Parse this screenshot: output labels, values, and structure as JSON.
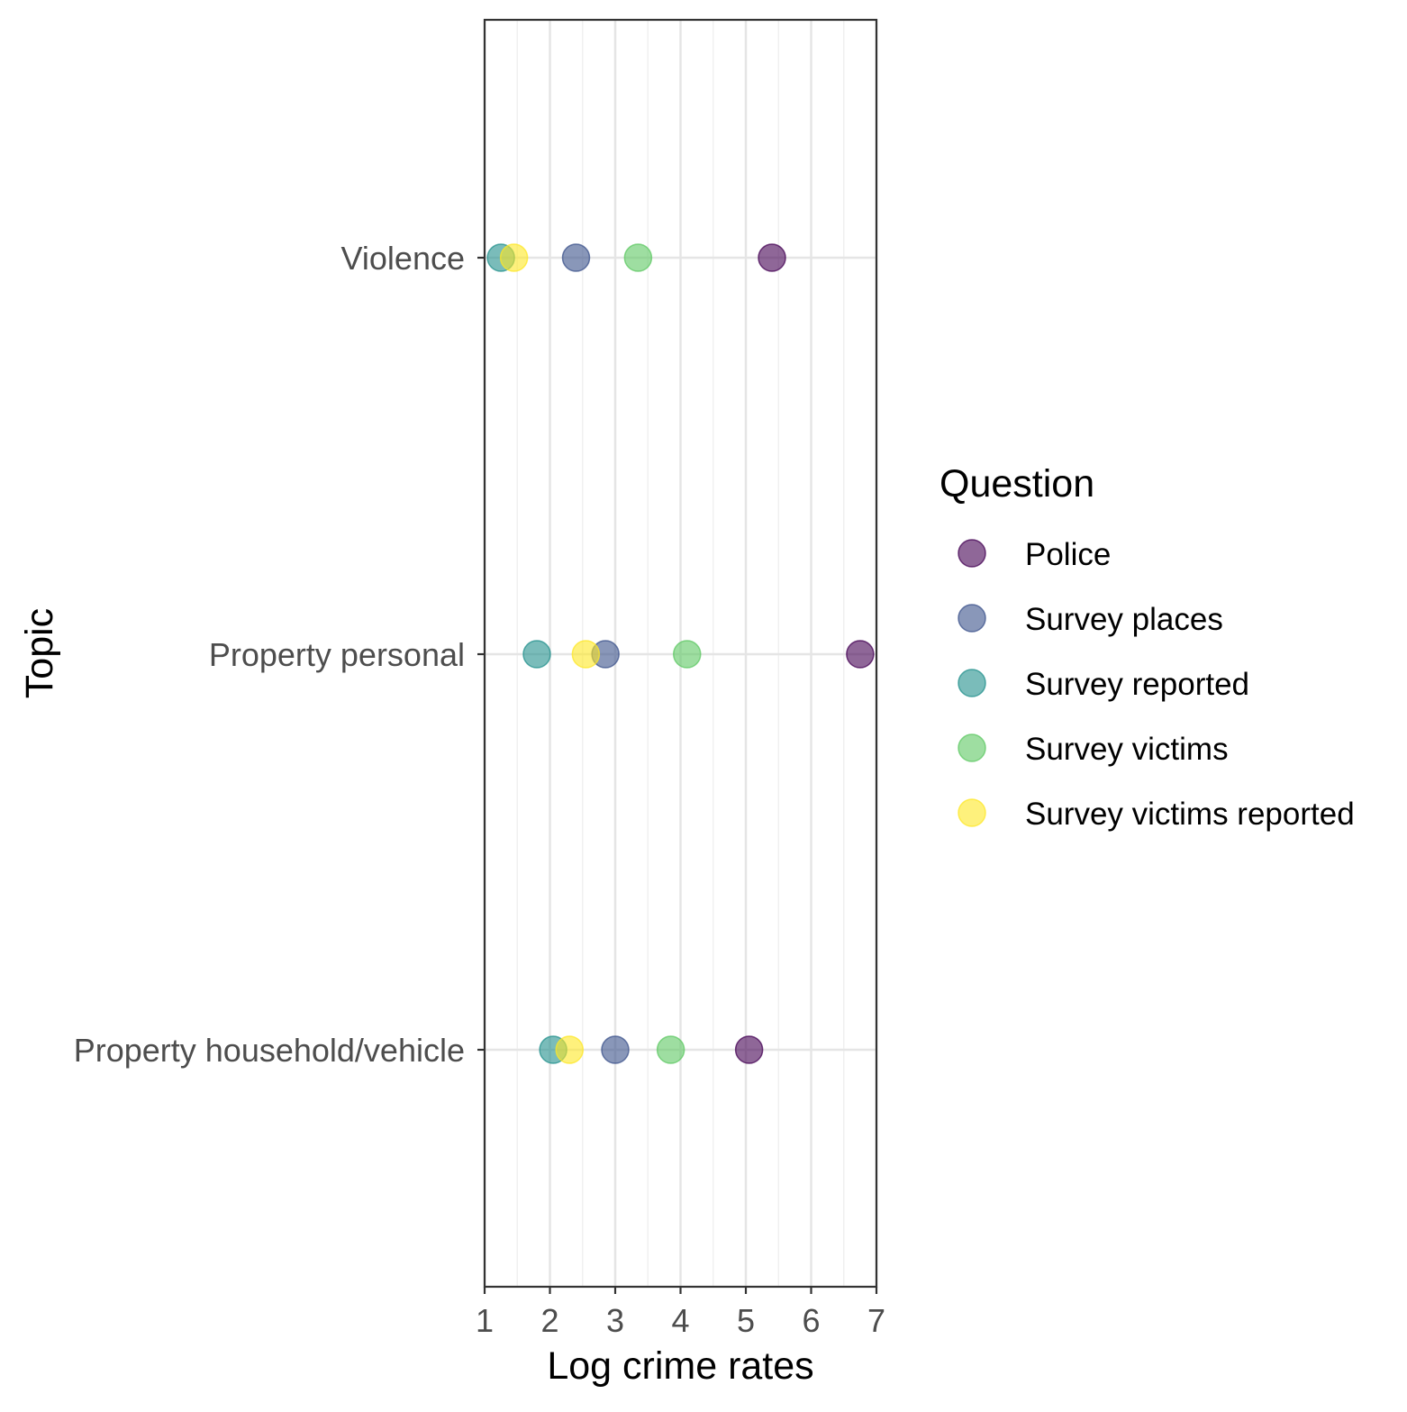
{
  "chart_data": {
    "type": "scatter",
    "xlabel": "Log crime rates",
    "ylabel": "Topic",
    "xlim": [
      1,
      7
    ],
    "x_ticks": [
      "1",
      "2",
      "3",
      "4",
      "5",
      "6",
      "7"
    ],
    "categories": [
      "Violence",
      "Property personal",
      "Property household/vehicle"
    ],
    "grid": true,
    "legend": {
      "title": "Question",
      "position": "right"
    },
    "series": [
      {
        "name": "Police",
        "color": "#440154",
        "values": [
          5.4,
          6.75,
          5.05
        ]
      },
      {
        "name": "Survey places",
        "color": "#3b528b",
        "values": [
          2.4,
          2.85,
          3.0
        ]
      },
      {
        "name": "Survey reported",
        "color": "#21908c",
        "values": [
          1.25,
          1.8,
          2.05
        ]
      },
      {
        "name": "Survey victims",
        "color": "#5dc863",
        "values": [
          3.35,
          4.1,
          3.85
        ]
      },
      {
        "name": "Survey victims reported",
        "color": "#fde725",
        "values": [
          1.45,
          2.55,
          2.3
        ]
      }
    ]
  }
}
